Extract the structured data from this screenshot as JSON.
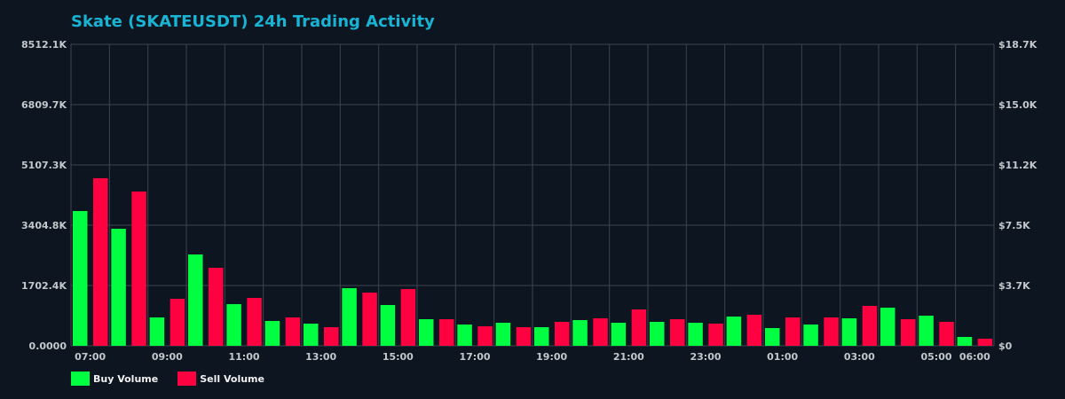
{
  "title": "Skate (SKATEUSDT) 24h Trading Activity",
  "colors": {
    "background": "#0d1620",
    "grid": "#3a4450",
    "buy": "#00ff41",
    "sell": "#ff0040",
    "title": "#19b3d3"
  },
  "legend": [
    {
      "label": "Buy Volume",
      "color": "#00ff41"
    },
    {
      "label": "Sell Volume",
      "color": "#ff0040"
    }
  ],
  "chart_data": {
    "type": "bar",
    "title": "Skate (SKATEUSDT) 24h Trading Activity",
    "xlabel": "",
    "ylabel": "",
    "categories": [
      "07:00",
      "08:00",
      "09:00",
      "10:00",
      "11:00",
      "12:00",
      "13:00",
      "14:00",
      "15:00",
      "16:00",
      "17:00",
      "18:00",
      "19:00",
      "20:00",
      "21:00",
      "22:00",
      "23:00",
      "00:00",
      "01:00",
      "02:00",
      "03:00",
      "04:00",
      "05:00",
      "06:00"
    ],
    "x_tick_labels": [
      "07:00",
      "09:00",
      "11:00",
      "13:00",
      "15:00",
      "17:00",
      "19:00",
      "21:00",
      "23:00",
      "01:00",
      "03:00",
      "05:00",
      "06:00"
    ],
    "series": [
      {
        "name": "Buy Volume",
        "color": "#00ff41",
        "values": [
          3805,
          3305,
          801,
          2579,
          1177,
          701,
          626,
          1627,
          1152,
          751,
          601,
          651,
          526,
          726,
          651,
          676,
          651,
          826,
          501,
          601,
          776,
          1077,
          851,
          250
        ]
      },
      {
        "name": "Sell Volume",
        "color": "#ff0040",
        "values": [
          4732,
          4356,
          1327,
          2203,
          1352,
          801,
          526,
          1502,
          1602,
          751,
          551,
          526,
          676,
          776,
          1026,
          751,
          626,
          876,
          801,
          801,
          1127,
          751,
          676,
          200
        ]
      }
    ],
    "units": "K",
    "ylim": [
      0,
      8512.1
    ],
    "y_ticks_left": [
      "0.0000",
      "1702.4K",
      "3404.8K",
      "5107.3K",
      "6809.7K",
      "8512.1K"
    ],
    "y_ticks_right": [
      "$0",
      "$3.7K",
      "$7.5K",
      "$11.2K",
      "$15.0K",
      "$18.7K"
    ],
    "y2lim": [
      0,
      18700
    ],
    "grid": true,
    "legend_position": "bottom-left"
  }
}
